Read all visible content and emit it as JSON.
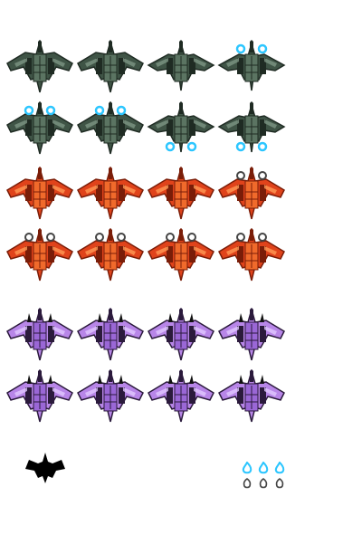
{
  "palettes": {
    "green": {
      "body": "#3f5446",
      "dark": "#1f2b23",
      "light": "#7d9583",
      "accent": "#5b7462"
    },
    "orange": {
      "body": "#e0431b",
      "dark": "#7a1d08",
      "light": "#ff9a55",
      "accent": "#f06a2b"
    },
    "purple": {
      "body": "#b886e8",
      "dark": "#2b1a3c",
      "light": "#e1c8ff",
      "accent": "#9a67d6"
    }
  },
  "glow_color": "#2cc6ff",
  "smoke_color": "#444444",
  "sprite_sheet": {
    "groups": [
      {
        "color": "green",
        "rows": [
          [
            {
              "pose": "idle"
            },
            {
              "pose": "idle"
            },
            {
              "pose": "bank"
            },
            {
              "pose": "bank",
              "fx": "glow-top"
            }
          ],
          [
            {
              "pose": "idle",
              "fx": "glow-top"
            },
            {
              "pose": "idle",
              "fx": "glow-top"
            },
            {
              "pose": "bank",
              "fx": "glow-bottom"
            },
            {
              "pose": "bank",
              "fx": "glow-bottom"
            }
          ]
        ]
      },
      {
        "color": "orange",
        "rows": [
          [
            {
              "pose": "idle"
            },
            {
              "pose": "idle"
            },
            {
              "pose": "idle"
            },
            {
              "pose": "idle",
              "fx": "ring-top"
            }
          ],
          [
            {
              "pose": "idle",
              "fx": "ring-top"
            },
            {
              "pose": "idle",
              "fx": "ring-top"
            },
            {
              "pose": "idle",
              "fx": "ring-top"
            },
            {
              "pose": "idle",
              "fx": "ring-top"
            }
          ]
        ]
      },
      {
        "color": "purple",
        "rows": [
          [
            {
              "pose": "idle"
            },
            {
              "pose": "idle"
            },
            {
              "pose": "idle"
            },
            {
              "pose": "idle"
            }
          ],
          [
            {
              "pose": "idle"
            },
            {
              "pose": "idle"
            },
            {
              "pose": "idle"
            },
            {
              "pose": "idle"
            }
          ]
        ]
      }
    ]
  },
  "shadow_sprite": {
    "color": "#000000"
  },
  "effects": [
    {
      "kind": "flame",
      "color": "#2cc6ff"
    },
    {
      "kind": "flame",
      "color": "#2cc6ff"
    },
    {
      "kind": "flame",
      "color": "#2cc6ff"
    },
    {
      "kind": "smoke",
      "color": "#444444"
    },
    {
      "kind": "smoke",
      "color": "#444444"
    },
    {
      "kind": "smoke",
      "color": "#444444"
    }
  ]
}
